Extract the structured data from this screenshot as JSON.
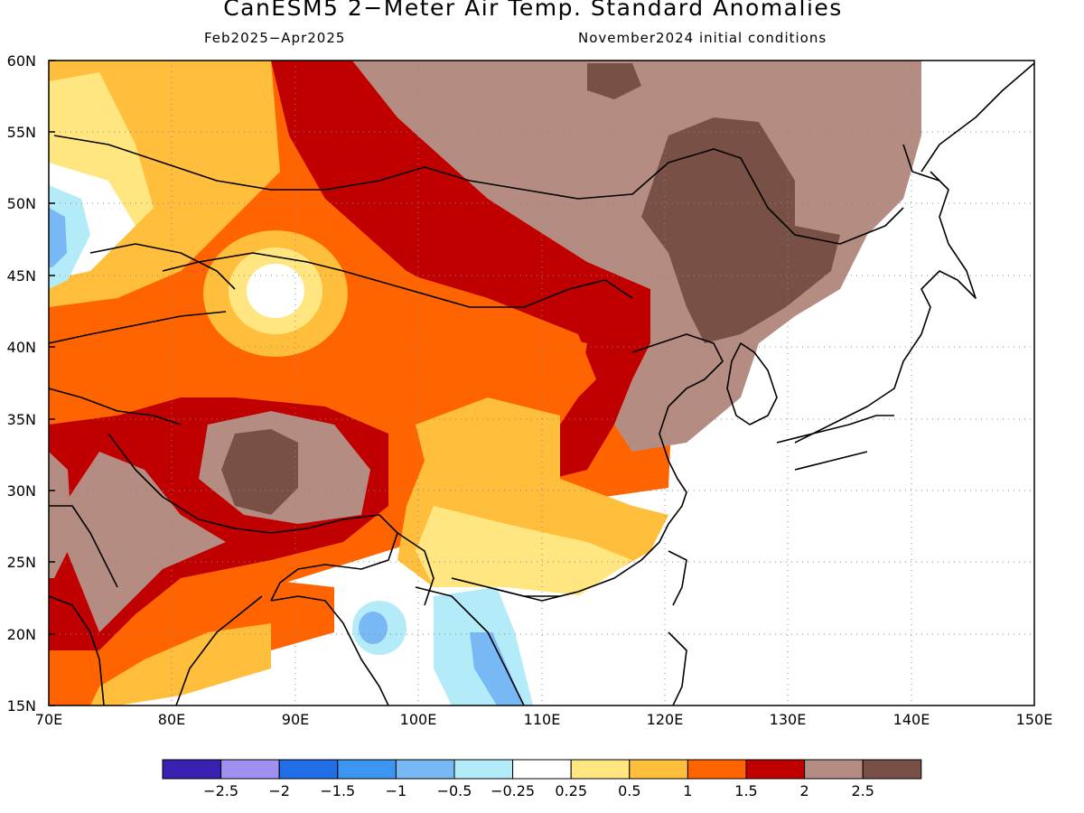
{
  "title": "CanESM5 2−Meter Air Temp. Standard Anomalies",
  "period": "Feb2025−Apr2025",
  "init": "November2024 initial conditions",
  "map": {
    "lon_range": [
      70,
      150
    ],
    "lat_range": [
      15,
      60
    ],
    "lon_ticks": [
      70,
      80,
      90,
      100,
      110,
      120,
      130,
      140,
      150
    ],
    "lon_labels": [
      "70E",
      "80E",
      "90E",
      "100E",
      "110E",
      "120E",
      "130E",
      "140E",
      "150E"
    ],
    "lat_ticks": [
      15,
      20,
      25,
      30,
      35,
      40,
      45,
      50,
      55,
      60
    ],
    "lat_labels": [
      "15N",
      "20N",
      "25N",
      "30N",
      "35N",
      "40N",
      "45N",
      "50N",
      "55N",
      "60N"
    ],
    "gridlines": true
  },
  "colorbar": {
    "colors": [
      "#3a20b0",
      "#a090f0",
      "#1f6ee6",
      "#3c95f0",
      "#78b9f5",
      "#b4ebf8",
      "#ffffff",
      "#ffe680",
      "#ffbe3c",
      "#ff6400",
      "#c00000",
      "#b48c82",
      "#785046"
    ],
    "labels": [
      "−2.5",
      "−2",
      "−1.5",
      "−1",
      "−0.5",
      "−0.25",
      "0.25",
      "0.5",
      "1",
      "1.5",
      "2",
      "2.5"
    ]
  }
}
